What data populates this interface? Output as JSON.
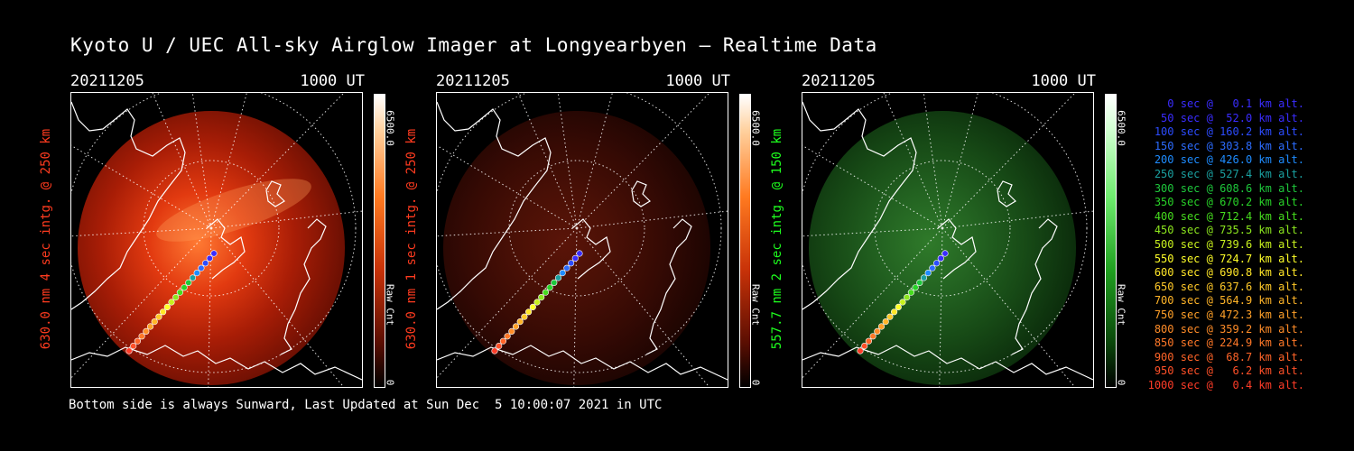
{
  "title": "Kyoto U / UEC All-sky Airglow Imager at Longyearbyen — Realtime Data",
  "footer": "Bottom side is always Sunward, Last Updated at Sun Dec  5 10:00:07 2021 in UTC",
  "panels": [
    {
      "date": "20211205",
      "time": "1000 UT",
      "side_label": "630.0 nm 4 sec intg. @ 250 km",
      "side_color": "#ff3b1f",
      "cbar_max": "6500.0",
      "cbar_unit": "Raw Cnt",
      "cbar_min": "0",
      "image_color": "red-bright",
      "intensity": "high"
    },
    {
      "date": "20211205",
      "time": "1000 UT",
      "side_label": "630.0 nm 1 sec intg. @ 250 km",
      "side_color": "#ff3b1f",
      "cbar_max": "6500.0",
      "cbar_unit": "Raw Cnt",
      "cbar_min": "0",
      "image_color": "red-dim",
      "intensity": "low"
    },
    {
      "date": "20211205",
      "time": "1000 UT",
      "side_label": "557.7 nm 2 sec intg. @ 150 km",
      "side_color": "#1eff1e",
      "cbar_max": "6500.0",
      "cbar_unit": "Raw Cnt",
      "cbar_min": "0",
      "image_color": "green",
      "intensity": "low"
    }
  ],
  "legend": [
    {
      "text": "0 sec @   0.1 km alt.",
      "color": "#3a2cff"
    },
    {
      "text": "50 sec @  52.0 km alt.",
      "color": "#3a2cff"
    },
    {
      "text": "100 sec @ 160.2 km alt.",
      "color": "#2c4cff"
    },
    {
      "text": "150 sec @ 303.8 km alt.",
      "color": "#2c6cff"
    },
    {
      "text": "200 sec @ 426.0 km alt.",
      "color": "#1e8cff"
    },
    {
      "text": "250 sec @ 527.4 km alt.",
      "color": "#1aa0a0"
    },
    {
      "text": "300 sec @ 608.6 km alt.",
      "color": "#1ec83c"
    },
    {
      "text": "350 sec @ 670.2 km alt.",
      "color": "#28d228"
    },
    {
      "text": "400 sec @ 712.4 km alt.",
      "color": "#46dc1e"
    },
    {
      "text": "450 sec @ 735.5 km alt.",
      "color": "#8ce61e"
    },
    {
      "text": "500 sec @ 739.6 km alt.",
      "color": "#c8f01e"
    },
    {
      "text": "550 sec @ 724.7 km alt.",
      "color": "#ffff28"
    },
    {
      "text": "600 sec @ 690.8 km alt.",
      "color": "#ffe628"
    },
    {
      "text": "650 sec @ 637.6 km alt.",
      "color": "#ffc828"
    },
    {
      "text": "700 sec @ 564.9 km alt.",
      "color": "#ffb428"
    },
    {
      "text": "750 sec @ 472.3 km alt.",
      "color": "#ffa028"
    },
    {
      "text": "800 sec @ 359.2 km alt.",
      "color": "#ff8c28"
    },
    {
      "text": "850 sec @ 224.9 km alt.",
      "color": "#ff7828"
    },
    {
      "text": "900 sec @  68.7 km alt.",
      "color": "#ff6428"
    },
    {
      "text": "950 sec @   6.2 km alt.",
      "color": "#ff5028"
    },
    {
      "text": "1000 sec @   0.4 km alt.",
      "color": "#ff3c28"
    }
  ]
}
